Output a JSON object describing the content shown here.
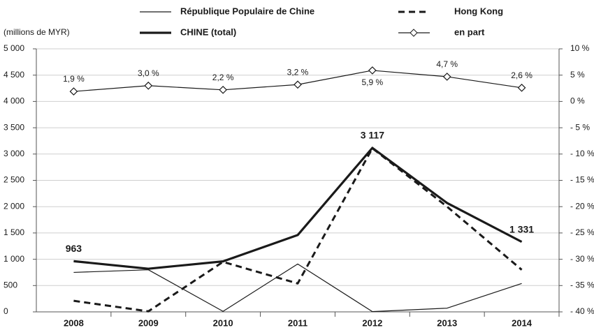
{
  "chart_data": {
    "type": "line",
    "y_label": "(millions de MYR)",
    "categories": [
      "2008",
      "2009",
      "2010",
      "2011",
      "2012",
      "2013",
      "2014"
    ],
    "series": [
      {
        "name": "République Populaire de Chine",
        "color": "#1a1a1a",
        "line_width": 1.2,
        "dash": null,
        "marker": null,
        "values": [
          750,
          800,
          10,
          910,
          5,
          70,
          540
        ]
      },
      {
        "name": "Hong Kong",
        "color": "#1a1a1a",
        "line_width": 3,
        "dash": "9 6",
        "marker": null,
        "values": [
          210,
          10,
          950,
          540,
          3110,
          2000,
          800
        ]
      },
      {
        "name": "CHINE (total)",
        "color": "#1a1a1a",
        "line_width": 3.2,
        "dash": null,
        "marker": null,
        "values": [
          963,
          820,
          960,
          1460,
          3117,
          2070,
          1331
        ],
        "value_labels": [
          "963",
          null,
          null,
          null,
          "3 117",
          null,
          "1 331"
        ]
      },
      {
        "name": "en part",
        "color": "#1a1a1a",
        "line_width": 1.2,
        "dash": null,
        "marker": "diamond",
        "axis": "y2",
        "values": [
          1.9,
          3.0,
          2.2,
          3.2,
          5.9,
          4.7,
          2.6
        ],
        "value_labels": [
          "1,9 %",
          "3,0 %",
          "2,2 %",
          "3,2 %",
          "5,9 %",
          "4,7 %",
          "2,6 %"
        ]
      }
    ],
    "ylim": [
      0,
      5000
    ],
    "yticks": [
      0,
      500,
      {
        "value": 1000,
        "label": "1 000"
      },
      {
        "value": 1500,
        "label": "1 500"
      },
      {
        "value": 2000,
        "label": "2 000"
      },
      {
        "value": 2500,
        "label": "2 500"
      },
      {
        "value": 3000,
        "label": "3 000"
      },
      {
        "value": 3500,
        "label": "3 500"
      },
      {
        "value": 4000,
        "label": "4 000"
      },
      {
        "value": 4500,
        "label": "4 500"
      },
      {
        "value": 5000,
        "label": "5 000"
      }
    ],
    "y2lim": [
      -40,
      10
    ],
    "y2ticks": [
      {
        "value": -40,
        "label": "- 40 %"
      },
      {
        "value": -35,
        "label": "- 35 %"
      },
      {
        "value": -30,
        "label": "- 30 %"
      },
      {
        "value": -25,
        "label": "- 25 %"
      },
      {
        "value": -20,
        "label": "- 20 %"
      },
      {
        "value": -15,
        "label": "- 15 %"
      },
      {
        "value": -10,
        "label": "- 10 %"
      },
      {
        "value": -5,
        "label": "- 5 %"
      },
      {
        "value": 0,
        "label": "0 %"
      },
      {
        "value": 5,
        "label": "5 %"
      },
      {
        "value": 10,
        "label": "10 %"
      }
    ],
    "grid": true
  }
}
